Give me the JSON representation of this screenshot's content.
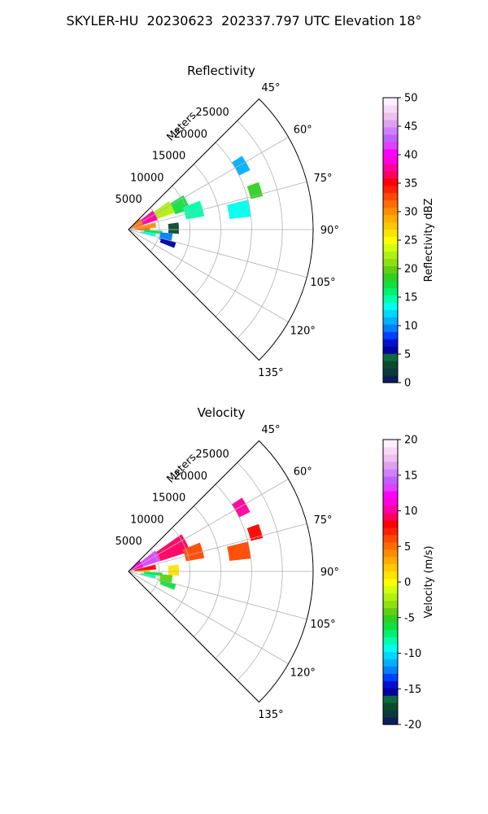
{
  "figure": {
    "title": "SKYLER-HU  20230623  202337.797 UTC Elevation 18°"
  },
  "chart_data": [
    {
      "type": "heatmap",
      "subtype": "polar-sector-ppi",
      "title": "Reflectivity",
      "range_axis_label": "Meters",
      "range_ticks": [
        5000,
        10000,
        15000,
        20000,
        25000
      ],
      "range_max": 30000,
      "azimuth_range_deg": [
        45,
        135
      ],
      "azimuth_ticks": [
        "45°",
        "60°",
        "75°",
        "90°",
        "105°",
        "120°",
        "135°"
      ],
      "grid": true,
      "colorbar": {
        "label": "Reflectivity dBZ",
        "min": 0,
        "max": 50,
        "ticks": [
          0,
          5,
          10,
          15,
          20,
          25,
          30,
          35,
          40,
          45,
          50
        ],
        "colors": [
          "#0a1e5a",
          "#0a3a3a",
          "#0a4a30",
          "#0a6a40",
          "#0000a0",
          "#0010d0",
          "#0040ff",
          "#0080ff",
          "#00b0ff",
          "#00d8ff",
          "#00ffee",
          "#00ffaa",
          "#00f070",
          "#10e040",
          "#30d020",
          "#60d010",
          "#90e010",
          "#b0f010",
          "#d0ff10",
          "#ffff00",
          "#ffe400",
          "#ffc800",
          "#ffac00",
          "#ff8c00",
          "#ff6c00",
          "#ff4800",
          "#ff2000",
          "#ff0000",
          "#ff0060",
          "#ff00a0",
          "#ff00e0",
          "#ff00ff",
          "#e040ff",
          "#c060ff",
          "#d080ff",
          "#e0a0f0",
          "#f0c0f0",
          "#f8d8f8",
          "#fff0ff"
        ]
      },
      "echoes": [
        {
          "az": [
            46,
            75
          ],
          "r": [
            500,
            2500
          ],
          "value": 32
        },
        {
          "az": [
            52,
            72
          ],
          "r": [
            2500,
            5000
          ],
          "value": 38
        },
        {
          "az": [
            55,
            70
          ],
          "r": [
            5000,
            8000
          ],
          "value": 22
        },
        {
          "az": [
            58,
            72
          ],
          "r": [
            8000,
            10500
          ],
          "value": 17
        },
        {
          "az": [
            68,
            80
          ],
          "r": [
            9500,
            12500
          ],
          "value": 15
        },
        {
          "az": [
            76,
            86
          ],
          "r": [
            1000,
            4500
          ],
          "value": 30
        },
        {
          "az": [
            86,
            94
          ],
          "r": [
            500,
            3500
          ],
          "value": 33
        },
        {
          "az": [
            92,
            98
          ],
          "r": [
            2500,
            5500
          ],
          "value": 17
        },
        {
          "az": [
            98,
            104
          ],
          "r": [
            2000,
            4500
          ],
          "value": 14
        },
        {
          "az": [
            95,
            108
          ],
          "r": [
            5200,
            7200
          ],
          "value": 9
        },
        {
          "az": [
            105,
            112
          ],
          "r": [
            5500,
            8000
          ],
          "value": 6
        },
        {
          "az": [
            82,
            95
          ],
          "r": [
            6500,
            8200
          ],
          "value": 3
        },
        {
          "az": [
            76,
            84
          ],
          "r": [
            16500,
            20000
          ],
          "value": 13
        },
        {
          "az": [
            70,
            76
          ],
          "r": [
            20500,
            22500
          ],
          "value": 19
        },
        {
          "az": [
            57,
            64
          ],
          "r": [
            20000,
            22000
          ],
          "value": 11
        }
      ]
    },
    {
      "type": "heatmap",
      "subtype": "polar-sector-ppi",
      "title": "Velocity",
      "range_axis_label": "Meters",
      "range_ticks": [
        5000,
        10000,
        15000,
        20000,
        25000
      ],
      "range_max": 30000,
      "azimuth_range_deg": [
        45,
        135
      ],
      "azimuth_ticks": [
        "45°",
        "60°",
        "75°",
        "90°",
        "105°",
        "120°",
        "135°"
      ],
      "grid": true,
      "colorbar": {
        "label": "Velocity (m/s)",
        "min": -20,
        "max": 20,
        "ticks": [
          -20,
          -15,
          -10,
          -5,
          0,
          5,
          10,
          15,
          20
        ],
        "colors": [
          "#0a1e5a",
          "#0a3a3a",
          "#0a4a30",
          "#0a6a40",
          "#0000a0",
          "#0010d0",
          "#0040ff",
          "#0080ff",
          "#00b0ff",
          "#00d8ff",
          "#00ffee",
          "#00ffaa",
          "#00f070",
          "#10e040",
          "#30d020",
          "#60d010",
          "#90e010",
          "#b0f010",
          "#d0ff10",
          "#ffff00",
          "#ffe400",
          "#ffc800",
          "#ffac00",
          "#ff8c00",
          "#ff6c00",
          "#ff4800",
          "#ff2000",
          "#ff0000",
          "#ff0060",
          "#ff00a0",
          "#ff00e0",
          "#ff00ff",
          "#e040ff",
          "#c060ff",
          "#d080ff",
          "#e0a0f0",
          "#f0c0f0",
          "#f8d8f8",
          "#fff0ff"
        ]
      },
      "echoes": [
        {
          "az": [
            46,
            75
          ],
          "r": [
            500,
            2500
          ],
          "value": 11
        },
        {
          "az": [
            52,
            72
          ],
          "r": [
            2500,
            5500
          ],
          "value": 13
        },
        {
          "az": [
            55,
            72
          ],
          "r": [
            5500,
            10500
          ],
          "value": 9
        },
        {
          "az": [
            68,
            80
          ],
          "r": [
            9500,
            12500
          ],
          "value": 6
        },
        {
          "az": [
            76,
            86
          ],
          "r": [
            1000,
            4500
          ],
          "value": 8
        },
        {
          "az": [
            86,
            94
          ],
          "r": [
            500,
            3500
          ],
          "value": 2
        },
        {
          "az": [
            92,
            98
          ],
          "r": [
            2500,
            5500
          ],
          "value": -6
        },
        {
          "az": [
            98,
            104
          ],
          "r": [
            2000,
            4500
          ],
          "value": -8
        },
        {
          "az": [
            95,
            108
          ],
          "r": [
            5200,
            7200
          ],
          "value": -4
        },
        {
          "az": [
            105,
            112
          ],
          "r": [
            5500,
            8000
          ],
          "value": -6
        },
        {
          "az": [
            82,
            95
          ],
          "r": [
            6500,
            8200
          ],
          "value": 1
        },
        {
          "az": [
            76,
            84
          ],
          "r": [
            16500,
            20000
          ],
          "value": 6
        },
        {
          "az": [
            70,
            76
          ],
          "r": [
            20500,
            22500
          ],
          "value": 8
        },
        {
          "az": [
            57,
            64
          ],
          "r": [
            20000,
            22000
          ],
          "value": 10
        }
      ]
    }
  ]
}
